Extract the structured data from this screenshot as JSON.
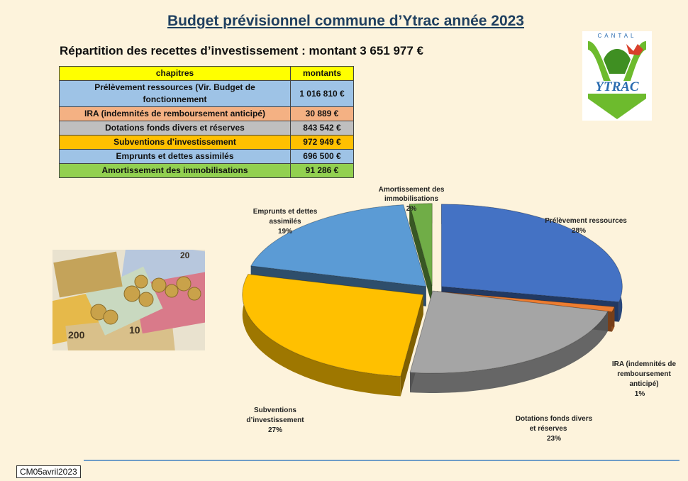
{
  "title": "Budget prévisionnel commune d’Ytrac année 2023",
  "subtitle": "Répartition des recettes d’investissement : montant 3 651 977 €",
  "table": {
    "headers": [
      "chapitres",
      "montants"
    ],
    "rows": [
      {
        "label": "Prélèvement ressources (Vir. Budget de fonctionnement",
        "amount": "1 016 810 €",
        "color": "#9ec3e6"
      },
      {
        "label": "IRA (indemnités de remboursement anticipé)",
        "amount": "30 889 €",
        "color": "#f4b183"
      },
      {
        "label": "Dotations fonds divers et réserves",
        "amount": "843 542 €",
        "color": "#bfbfbf"
      },
      {
        "label": "Subventions d’investissement",
        "amount": "972 949 €",
        "color": "#ffc000"
      },
      {
        "label": "Emprunts et dettes assimilés",
        "amount": "696 500 €",
        "color": "#9ec3e6"
      },
      {
        "label": "Amortissement des immobilisations",
        "amount": "91 286 €",
        "color": "#92d050"
      }
    ]
  },
  "logo": {
    "top_text": "CANTAL",
    "name": "YTRAC"
  },
  "chart_data": {
    "type": "pie",
    "slices": [
      {
        "label": "Prélèvement ressources",
        "value": 28,
        "pct": "28%",
        "color": "#4472c4"
      },
      {
        "label": "IRA (indemnités de remboursement anticipé)",
        "value": 1,
        "pct": "1%",
        "color": "#ed7d31"
      },
      {
        "label": "Dotations fonds divers et réserves",
        "value": 23,
        "pct": "23%",
        "color": "#a5a5a5"
      },
      {
        "label": "Subventions d’investissement",
        "value": 27,
        "pct": "27%",
        "color": "#ffc000"
      },
      {
        "label": "Emprunts et dettes assimilés",
        "value": 19,
        "pct": "19%",
        "color": "#5b9bd5"
      },
      {
        "label": "Amortissement des immobilisations",
        "value": 2,
        "pct": "2%",
        "color": "#70ad47"
      }
    ]
  },
  "footer": "CM05avril2023"
}
